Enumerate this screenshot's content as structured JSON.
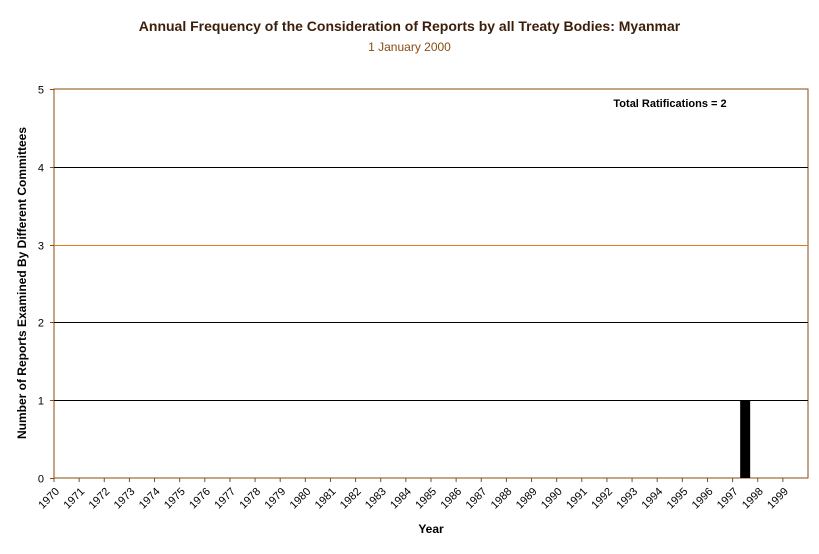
{
  "chart_data": {
    "type": "bar",
    "title": "Annual Frequency of the Consideration of Reports by all Treaty Bodies: Myanmar",
    "subtitle": "1 January 2000",
    "xlabel": "Year",
    "ylabel": "Number of Reports Examined By Different Committees",
    "annotation": "Total Ratifications = 2",
    "ylim": [
      0,
      5
    ],
    "yticks": [
      "0",
      "1",
      "2",
      "3",
      "4",
      "5"
    ],
    "categories": [
      "1970",
      "1971",
      "1972",
      "1973",
      "1974",
      "1975",
      "1976",
      "1977",
      "1978",
      "1979",
      "1980",
      "1981",
      "1982",
      "1983",
      "1984",
      "1985",
      "1986",
      "1987",
      "1988",
      "1989",
      "1990",
      "1991",
      "1992",
      "1993",
      "1994",
      "1995",
      "1996",
      "1997",
      "1998",
      "1999"
    ],
    "values": [
      0,
      0,
      0,
      0,
      0,
      0,
      0,
      0,
      0,
      0,
      0,
      0,
      0,
      0,
      0,
      0,
      0,
      0,
      0,
      0,
      0,
      0,
      0,
      0,
      0,
      0,
      0,
      1,
      0,
      0
    ],
    "highlight_line": 3,
    "colors": {
      "bar": "#000000",
      "axis": "#8a4b12",
      "grid": "#000000",
      "highlight": "#e07b1a",
      "title": "#3b1d0a"
    }
  }
}
